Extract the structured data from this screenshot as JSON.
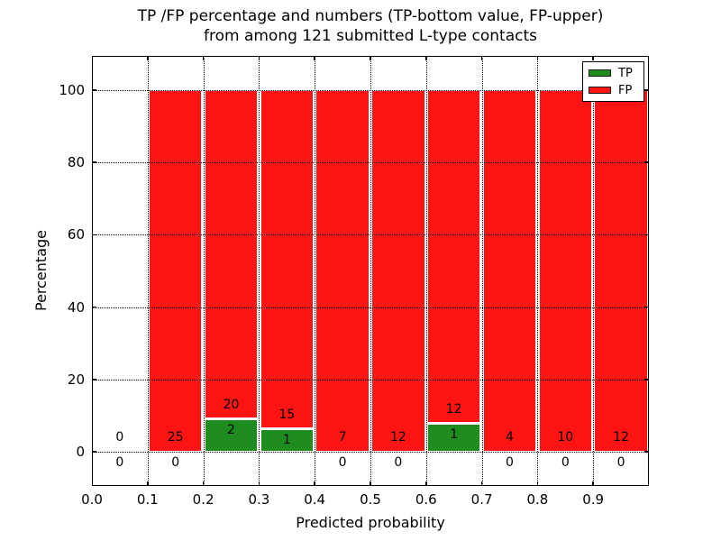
{
  "figure": {
    "title_line1": "TP /FP percentage and numbers (TP-bottom value, FP-upper)",
    "title_line2": "from among 121 submitted L-type contacts",
    "xlabel": "Predicted probability",
    "ylabel": "Percentage"
  },
  "legend": {
    "items": [
      {
        "label": "TP",
        "color": "#1e8c1e"
      },
      {
        "label": "FP",
        "color": "#ff1414"
      }
    ]
  },
  "chart_data": {
    "type": "bar",
    "stacked": true,
    "title": "TP /FP percentage and numbers (TP-bottom value, FP-upper) from among 121 submitted L-type contacts",
    "xlabel": "Predicted probability",
    "ylabel": "Percentage",
    "xlim": [
      0.0,
      1.0
    ],
    "ylim": [
      -9.5,
      109.5
    ],
    "grid": "dotted",
    "legend_position": "upper right",
    "xtick_labels": [
      "0.0",
      "0.1",
      "0.2",
      "0.3",
      "0.4",
      "0.5",
      "0.6",
      "0.7",
      "0.8",
      "0.9"
    ],
    "xtick_values": [
      0.0,
      0.1,
      0.2,
      0.3,
      0.4,
      0.5,
      0.6,
      0.7,
      0.8,
      0.9
    ],
    "ytick_values": [
      0,
      20,
      40,
      60,
      80,
      100
    ],
    "bin_edges": [
      0.0,
      0.1,
      0.2,
      0.3,
      0.4,
      0.5,
      0.6,
      0.7,
      0.8,
      0.9,
      1.0
    ],
    "series": [
      {
        "name": "TP",
        "color": "#1e8c1e",
        "counts": [
          0,
          0,
          2,
          1,
          0,
          0,
          1,
          0,
          0,
          0
        ],
        "percent": [
          0,
          0,
          9.09,
          6.25,
          0,
          0,
          7.69,
          0,
          0,
          0
        ]
      },
      {
        "name": "FP",
        "color": "#ff1414",
        "counts": [
          0,
          25,
          20,
          15,
          7,
          12,
          12,
          4,
          10,
          12
        ],
        "percent": [
          0,
          100,
          90.91,
          93.75,
          100,
          100,
          92.31,
          100,
          100,
          100
        ]
      }
    ]
  }
}
